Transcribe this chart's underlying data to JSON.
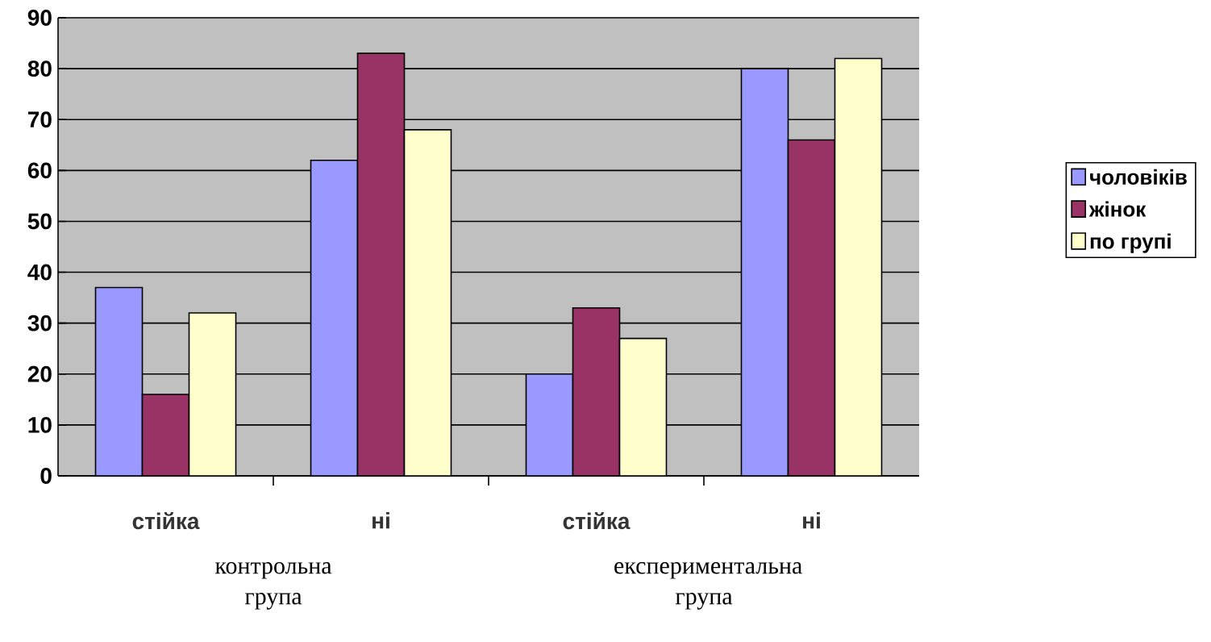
{
  "chart_data": {
    "type": "bar",
    "categories": [
      "стійка",
      "ні",
      "стійка",
      "ні"
    ],
    "series": [
      {
        "name": "чоловіків",
        "color": "#9999ff",
        "values": [
          37,
          62,
          20,
          80
        ]
      },
      {
        "name": "жінок",
        "color": "#993366",
        "values": [
          16,
          83,
          33,
          66
        ]
      },
      {
        "name": "по групі",
        "color": "#ffffcc",
        "values": [
          32,
          68,
          27,
          82
        ]
      }
    ],
    "ylim": [
      0,
      90
    ],
    "yticks": [
      0,
      10,
      20,
      30,
      40,
      50,
      60,
      70,
      80,
      90
    ],
    "grid": "y",
    "legend": "right",
    "annotations": [
      "контрольна група",
      "експериментальна група"
    ]
  }
}
